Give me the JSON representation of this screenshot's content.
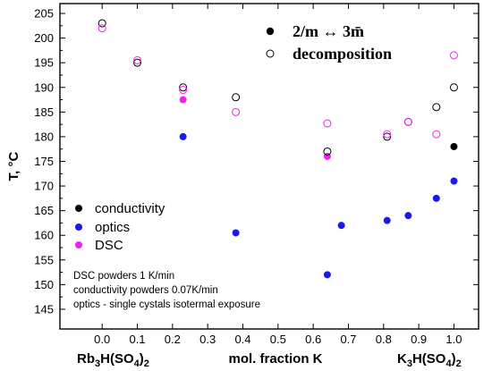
{
  "chart_data": {
    "type": "scatter",
    "title": "",
    "ylabel": "T, °C",
    "xlabel": "mol. fraction K",
    "x_end_labels": {
      "left": "Rb3H(SO4)2",
      "right": "K3H(SO4)2"
    },
    "xlim": [
      -0.12,
      1.07
    ],
    "ylim": [
      141,
      207
    ],
    "xticks": [
      0.0,
      0.1,
      0.2,
      0.3,
      0.4,
      0.5,
      0.6,
      0.7,
      0.8,
      0.9,
      1.0
    ],
    "xtick_labels": [
      "0.0",
      "0.1",
      "0.2",
      "0.3",
      "0.4",
      "0.5",
      "0.6",
      "0.7",
      "0.8",
      "0.9",
      "1.0"
    ],
    "yticks": [
      145,
      150,
      155,
      160,
      165,
      170,
      175,
      180,
      185,
      190,
      195,
      200,
      205
    ],
    "ytick_labels": [
      "145",
      "150",
      "155",
      "160",
      "165",
      "170",
      "175",
      "180",
      "185",
      "190",
      "195",
      "200",
      "205"
    ],
    "legend_top": [
      {
        "label": "2/m ↔ 3m̄",
        "style": "filled",
        "color": "#000000"
      },
      {
        "label": "decomposition",
        "style": "open",
        "color": "#000000"
      }
    ],
    "legend_bottom": [
      {
        "label": "conductivity",
        "color": "#000000"
      },
      {
        "label": "optics",
        "color": "#1a1aee"
      },
      {
        "label": "DSC",
        "color": "#ee22ee"
      }
    ],
    "notes": [
      "DSC powders 1 K/min",
      "conductivity powders 0.07K/min",
      "optics - single cystals isotermal exposure"
    ],
    "series": [
      {
        "name": "conductivity",
        "transition": "2/m ↔ 3m̄",
        "style": "filled",
        "color": "#000000",
        "x": [
          1.0
        ],
        "y": [
          178
        ]
      },
      {
        "name": "optics",
        "transition": "2/m ↔ 3m̄",
        "style": "filled",
        "color": "#1a1aee",
        "x": [
          0.23,
          0.38,
          0.64,
          0.68,
          0.81,
          0.87,
          0.95,
          1.0
        ],
        "y": [
          180,
          160.5,
          152,
          162,
          163,
          164,
          167.5,
          171
        ]
      },
      {
        "name": "DSC",
        "transition": "2/m ↔ 3m̄",
        "style": "filled",
        "color": "#ee22ee",
        "x": [
          0.23,
          0.64
        ],
        "y": [
          187.5,
          176
        ]
      },
      {
        "name": "conductivity",
        "transition": "decomposition",
        "style": "open",
        "color": "#000000",
        "x": [
          0.0,
          0.1,
          0.23,
          0.38,
          0.64,
          0.81,
          0.87,
          0.95,
          1.0
        ],
        "y": [
          203,
          195,
          190,
          188,
          177,
          180,
          183,
          186,
          190
        ]
      },
      {
        "name": "DSC",
        "transition": "decomposition",
        "style": "open",
        "color": "#ee22ee",
        "x": [
          0.0,
          0.1,
          0.23,
          0.38,
          0.64,
          0.81,
          0.87,
          0.95,
          1.0
        ],
        "y": [
          202,
          195.5,
          189.5,
          185,
          182.7,
          180.5,
          183,
          180.5,
          196.5
        ]
      }
    ]
  }
}
